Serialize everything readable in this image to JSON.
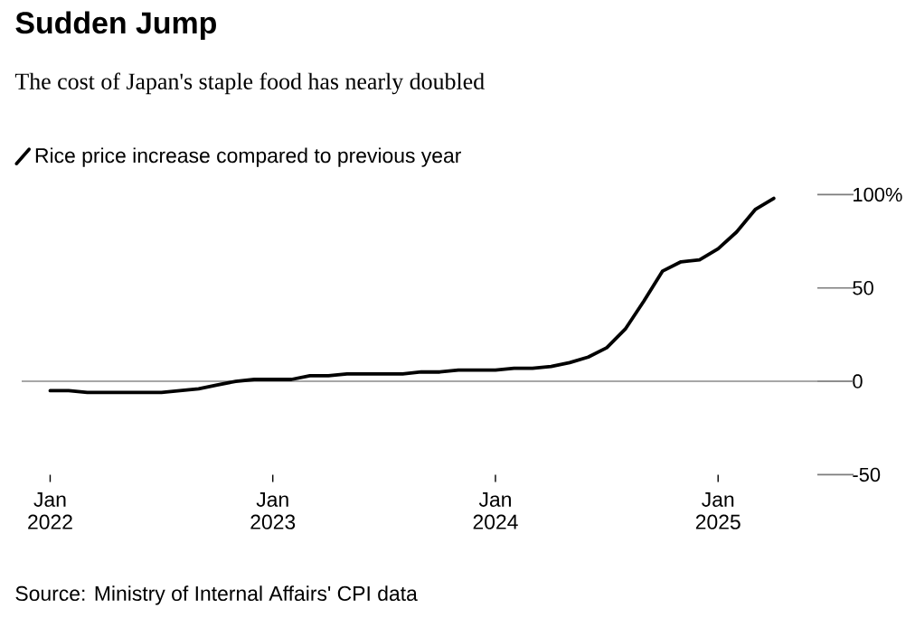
{
  "chart_data": {
    "type": "line",
    "title": "Sudden Jump",
    "subtitle": "The cost of Japan's staple food has nearly doubled",
    "annotations": [
      "Source: Ministry of Internal Affairs' CPI data"
    ],
    "x": [
      "2022-01",
      "2022-02",
      "2022-03",
      "2022-04",
      "2022-05",
      "2022-06",
      "2022-07",
      "2022-08",
      "2022-09",
      "2022-10",
      "2022-11",
      "2022-12",
      "2023-01",
      "2023-02",
      "2023-03",
      "2023-04",
      "2023-05",
      "2023-06",
      "2023-07",
      "2023-08",
      "2023-09",
      "2023-10",
      "2023-11",
      "2023-12",
      "2024-01",
      "2024-02",
      "2024-03",
      "2024-04",
      "2024-05",
      "2024-06",
      "2024-07",
      "2024-08",
      "2024-09",
      "2024-10",
      "2024-11",
      "2024-12",
      "2025-01",
      "2025-02",
      "2025-03",
      "2025-04"
    ],
    "series": [
      {
        "name": "Rice price increase compared to previous year",
        "color": "#000000",
        "values": [
          -5,
          -5,
          -6,
          -6,
          -6,
          -6,
          -6,
          -5,
          -4,
          -2,
          0,
          1,
          1,
          1,
          3,
          3,
          4,
          4,
          4,
          4,
          5,
          5,
          6,
          6,
          6,
          7,
          7,
          8,
          10,
          13,
          18,
          28,
          43,
          59,
          64,
          65,
          71,
          80,
          92,
          98
        ]
      }
    ],
    "xlim": [
      "2021-11-15",
      "2025-08-10"
    ],
    "xticks": [
      {
        "value": "2022-01",
        "label": "Jan 2022"
      },
      {
        "value": "2023-01",
        "label": "Jan 2023"
      },
      {
        "value": "2024-01",
        "label": "Jan 2024"
      },
      {
        "value": "2025-01",
        "label": "Jan 2025"
      }
    ],
    "ylim": [
      -50,
      100
    ],
    "yticks": [
      -50,
      0,
      50,
      {
        "value": 100,
        "label": "100%"
      }
    ],
    "ref_lines": [
      {
        "axis": "y",
        "value": 0,
        "color": "#8a8a8a"
      }
    ],
    "legend": "top left",
    "marker": "none",
    "line_style": "solid"
  }
}
